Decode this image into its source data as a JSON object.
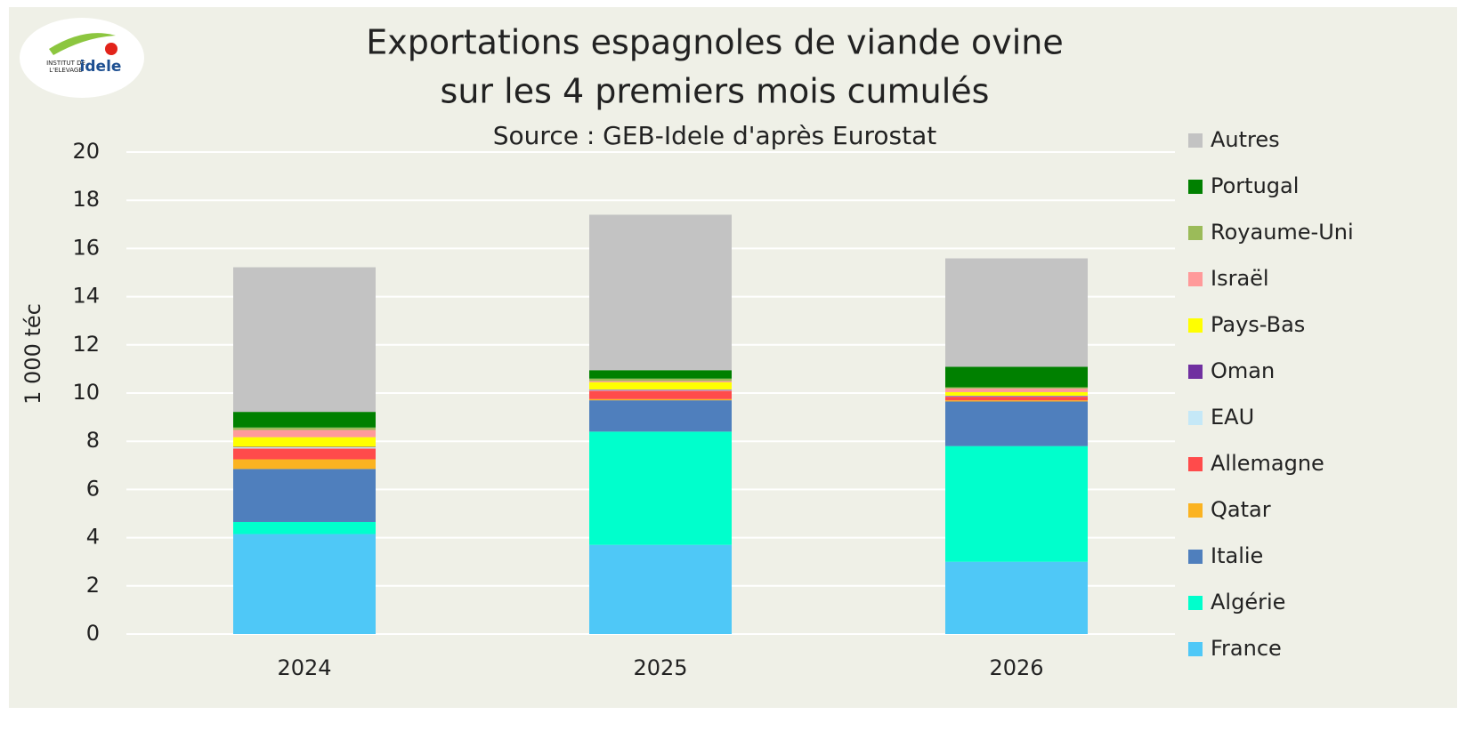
{
  "chart_data": {
    "type": "stacked_bar",
    "logo": {
      "line1": "INSTITUT DE",
      "line2": "L'ELEVAGE",
      "brand": "idele"
    },
    "title": [
      "Exportations espagnoles de viande ovine",
      "sur les 4 premiers mois cumulés"
    ],
    "subtitle": "Source : GEB-Idele d'après Eurostat",
    "y_label": "1 000 téc",
    "categories": [
      "2024",
      "2025",
      "2026"
    ],
    "series": [
      {
        "name": "France",
        "color": "#4fc8f7",
        "values": [
          4.15,
          3.7,
          3.0
        ]
      },
      {
        "name": "Algérie",
        "color": "#00ffcc",
        "values": [
          0.5,
          4.7,
          4.8
        ]
      },
      {
        "name": "Italie",
        "color": "#4f7fbd",
        "values": [
          2.2,
          1.3,
          1.85
        ]
      },
      {
        "name": "Qatar",
        "color": "#fbb321",
        "values": [
          0.4,
          0.05,
          0.05
        ]
      },
      {
        "name": "Allemagne",
        "color": "#ff4b4b",
        "values": [
          0.45,
          0.35,
          0.15
        ]
      },
      {
        "name": "EAU",
        "color": "#c5e8f7",
        "values": [
          0.05,
          0.03,
          0.02
        ]
      },
      {
        "name": "Oman",
        "color": "#7030a0",
        "values": [
          0.02,
          0.02,
          0.02
        ]
      },
      {
        "name": "Pays-Bas",
        "color": "#ffff00",
        "values": [
          0.4,
          0.3,
          0.15
        ]
      },
      {
        "name": "Israël",
        "color": "#ff9a9a",
        "values": [
          0.3,
          0.05,
          0.15
        ]
      },
      {
        "name": "Royaume-Uni",
        "color": "#9bbb59",
        "values": [
          0.1,
          0.1,
          0.05
        ]
      },
      {
        "name": "Portugal",
        "color": "#008000",
        "values": [
          0.65,
          0.35,
          0.85
        ]
      },
      {
        "name": "Autres",
        "color": "#c3c3c3",
        "values": [
          6.0,
          6.45,
          4.5
        ]
      }
    ],
    "ylim": [
      0,
      20
    ],
    "yticks": [
      0,
      2,
      4,
      6,
      8,
      10,
      12,
      14,
      16,
      18,
      20
    ],
    "grid": true,
    "legend": "right"
  }
}
